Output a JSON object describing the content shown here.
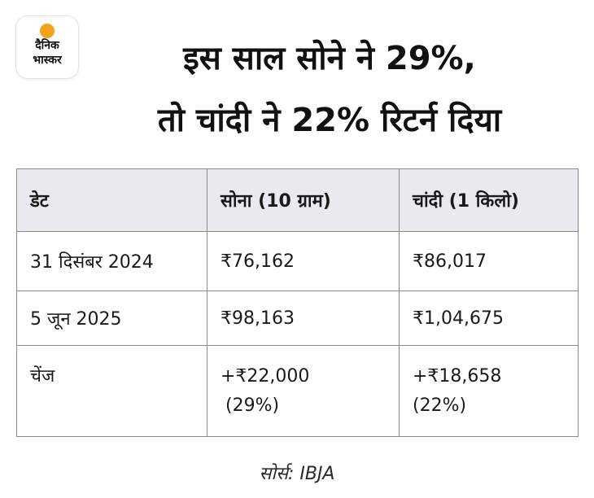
{
  "logo": {
    "line1": "दैनिक",
    "line2": "भास्कर",
    "sun_color": "#f5a218"
  },
  "headline": {
    "line1": "इस साल सोने ने 29%,",
    "line2": "तो चांदी ने 22% रिटर्न दिया"
  },
  "table": {
    "headers": [
      "डेट",
      "सोना (10 ग्राम)",
      "चांदी (1 किलो)"
    ],
    "rows": [
      {
        "date": "31 दिसंबर 2024",
        "gold": "₹76,162",
        "silver": "₹86,017"
      },
      {
        "date": "5 जून 2025",
        "gold": "₹98,163",
        "silver": "₹1,04,675"
      },
      {
        "date": "चेंज",
        "gold": "+₹22,000",
        "gold_pct": "(29%)",
        "silver": "+₹18,658",
        "silver_pct": "(22%)"
      }
    ],
    "header_bg": "#e9eaef"
  },
  "source": "सोर्स: IBJA"
}
